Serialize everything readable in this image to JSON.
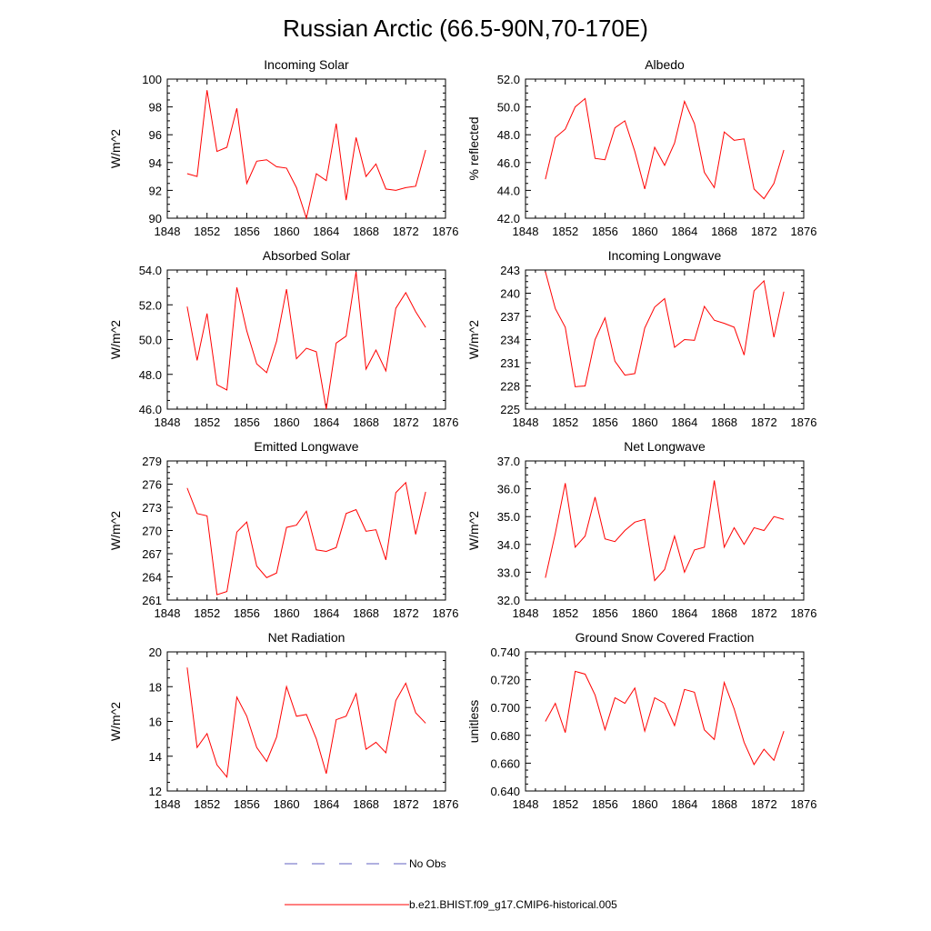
{
  "figure": {
    "title": "Russian Arctic (66.5-90N,70-170E)",
    "legend": [
      {
        "label": "No Obs",
        "color": "#6060c0",
        "style": "dashed"
      },
      {
        "label": "b.e21.BHIST.f09_g17.CMIP6-historical.005",
        "color": "#ff0000",
        "style": "solid"
      }
    ]
  },
  "chart_data": [
    {
      "type": "line",
      "title": "Incoming Solar",
      "ylabel": "W/m^2",
      "xlim": [
        1848,
        1876
      ],
      "xticks": [
        1848,
        1852,
        1856,
        1860,
        1864,
        1868,
        1872,
        1876
      ],
      "ylim": [
        90,
        100
      ],
      "yticks": [
        "90",
        "92",
        "94",
        "96",
        "98",
        "100"
      ],
      "series": [
        {
          "name": "b.e21.BHIST.f09_g17.CMIP6-historical.005",
          "color": "#ff0000",
          "x": [
            1850,
            1851,
            1852,
            1853,
            1854,
            1855,
            1856,
            1857,
            1858,
            1859,
            1860,
            1861,
            1862,
            1863,
            1864,
            1865,
            1866,
            1867,
            1868,
            1869,
            1870,
            1871,
            1872,
            1873,
            1874
          ],
          "y": [
            93.2,
            93.0,
            99.2,
            94.8,
            95.1,
            97.9,
            92.5,
            94.1,
            94.2,
            93.7,
            93.6,
            92.2,
            90.0,
            93.2,
            92.7,
            96.8,
            91.3,
            95.8,
            93.0,
            93.9,
            92.1,
            92.0,
            92.2,
            92.3,
            94.9
          ]
        }
      ]
    },
    {
      "type": "line",
      "title": "Albedo",
      "ylabel": "% reflected",
      "xlim": [
        1848,
        1876
      ],
      "xticks": [
        1848,
        1852,
        1856,
        1860,
        1864,
        1868,
        1872,
        1876
      ],
      "ylim": [
        42,
        52
      ],
      "yticks": [
        "42.0",
        "44.0",
        "46.0",
        "48.0",
        "50.0",
        "52.0"
      ],
      "series": [
        {
          "name": "b.e21.BHIST.f09_g17.CMIP6-historical.005",
          "color": "#ff0000",
          "x": [
            1850,
            1851,
            1852,
            1853,
            1854,
            1855,
            1856,
            1857,
            1858,
            1859,
            1860,
            1861,
            1862,
            1863,
            1864,
            1865,
            1866,
            1867,
            1868,
            1869,
            1870,
            1871,
            1872,
            1873,
            1874
          ],
          "y": [
            44.8,
            47.8,
            48.4,
            50.0,
            50.6,
            46.3,
            46.2,
            48.5,
            49.0,
            46.8,
            44.1,
            47.1,
            45.8,
            47.4,
            50.4,
            48.8,
            45.3,
            44.2,
            48.2,
            47.6,
            47.7,
            44.1,
            43.4,
            44.5,
            46.9
          ]
        }
      ]
    },
    {
      "type": "line",
      "title": "Absorbed Solar",
      "ylabel": "W/m^2",
      "xlim": [
        1848,
        1876
      ],
      "xticks": [
        1848,
        1852,
        1856,
        1860,
        1864,
        1868,
        1872,
        1876
      ],
      "ylim": [
        46,
        54
      ],
      "yticks": [
        "46.0",
        "48.0",
        "50.0",
        "52.0",
        "54.0"
      ],
      "series": [
        {
          "name": "b.e21.BHIST.f09_g17.CMIP6-historical.005",
          "color": "#ff0000",
          "x": [
            1850,
            1851,
            1852,
            1853,
            1854,
            1855,
            1856,
            1857,
            1858,
            1859,
            1860,
            1861,
            1862,
            1863,
            1864,
            1865,
            1866,
            1867,
            1868,
            1869,
            1870,
            1871,
            1872,
            1873,
            1874
          ],
          "y": [
            51.9,
            48.8,
            51.5,
            47.4,
            47.1,
            53.0,
            50.5,
            48.6,
            48.1,
            49.9,
            52.9,
            48.9,
            49.5,
            49.3,
            46.0,
            49.8,
            50.2,
            53.9,
            48.3,
            49.4,
            48.2,
            51.8,
            52.7,
            51.6,
            50.7
          ]
        }
      ]
    },
    {
      "type": "line",
      "title": "Incoming Longwave",
      "ylabel": "W/m^2",
      "xlim": [
        1848,
        1876
      ],
      "xticks": [
        1848,
        1852,
        1856,
        1860,
        1864,
        1868,
        1872,
        1876
      ],
      "ylim": [
        225,
        243
      ],
      "yticks": [
        "225",
        "228",
        "231",
        "234",
        "237",
        "240",
        "243"
      ],
      "series": [
        {
          "name": "b.e21.BHIST.f09_g17.CMIP6-historical.005",
          "color": "#ff0000",
          "x": [
            1850,
            1851,
            1852,
            1853,
            1854,
            1855,
            1856,
            1857,
            1858,
            1859,
            1860,
            1861,
            1862,
            1863,
            1864,
            1865,
            1866,
            1867,
            1868,
            1869,
            1870,
            1871,
            1872,
            1873,
            1874
          ],
          "y": [
            242.8,
            238.0,
            235.6,
            227.9,
            228.0,
            234.0,
            236.8,
            231.2,
            229.4,
            229.6,
            235.5,
            238.2,
            239.3,
            233.0,
            234.0,
            233.9,
            238.3,
            236.5,
            236.1,
            235.6,
            232.0,
            240.3,
            241.6,
            234.3,
            240.2
          ]
        }
      ]
    },
    {
      "type": "line",
      "title": "Emitted Longwave",
      "ylabel": "W/m^2",
      "xlim": [
        1848,
        1876
      ],
      "xticks": [
        1848,
        1852,
        1856,
        1860,
        1864,
        1868,
        1872,
        1876
      ],
      "ylim": [
        261,
        279
      ],
      "yticks": [
        "261",
        "264",
        "267",
        "270",
        "273",
        "276",
        "279"
      ],
      "series": [
        {
          "name": "b.e21.BHIST.f09_g17.CMIP6-historical.005",
          "color": "#ff0000",
          "x": [
            1850,
            1851,
            1852,
            1853,
            1854,
            1855,
            1856,
            1857,
            1858,
            1859,
            1860,
            1861,
            1862,
            1863,
            1864,
            1865,
            1866,
            1867,
            1868,
            1869,
            1870,
            1871,
            1872,
            1873,
            1874
          ],
          "y": [
            275.5,
            272.2,
            271.9,
            261.7,
            262.1,
            269.8,
            271.1,
            265.4,
            263.9,
            264.5,
            270.4,
            270.7,
            272.5,
            267.5,
            267.3,
            267.8,
            272.2,
            272.7,
            269.9,
            270.1,
            266.2,
            274.9,
            276.2,
            269.5,
            275.0
          ]
        }
      ]
    },
    {
      "type": "line",
      "title": "Net Longwave",
      "ylabel": "W/m^2",
      "xlim": [
        1848,
        1876
      ],
      "xticks": [
        1848,
        1852,
        1856,
        1860,
        1864,
        1868,
        1872,
        1876
      ],
      "ylim": [
        32,
        37
      ],
      "yticks": [
        "32.0",
        "33.0",
        "34.0",
        "35.0",
        "36.0",
        "37.0"
      ],
      "series": [
        {
          "name": "b.e21.BHIST.f09_g17.CMIP6-historical.005",
          "color": "#ff0000",
          "x": [
            1850,
            1851,
            1852,
            1853,
            1854,
            1855,
            1856,
            1857,
            1858,
            1859,
            1860,
            1861,
            1862,
            1863,
            1864,
            1865,
            1866,
            1867,
            1868,
            1869,
            1870,
            1871,
            1872,
            1873,
            1874
          ],
          "y": [
            32.8,
            34.4,
            36.2,
            33.9,
            34.3,
            35.7,
            34.2,
            34.1,
            34.5,
            34.8,
            34.9,
            32.7,
            33.1,
            34.3,
            33.0,
            33.8,
            33.9,
            36.3,
            33.9,
            34.6,
            34.0,
            34.6,
            34.5,
            35.0,
            34.9
          ]
        }
      ]
    },
    {
      "type": "line",
      "title": "Net Radiation",
      "ylabel": "W/m^2",
      "xlim": [
        1848,
        1876
      ],
      "xticks": [
        1848,
        1852,
        1856,
        1860,
        1864,
        1868,
        1872,
        1876
      ],
      "ylim": [
        12,
        20
      ],
      "yticks": [
        "12",
        "14",
        "16",
        "18",
        "20"
      ],
      "series": [
        {
          "name": "b.e21.BHIST.f09_g17.CMIP6-historical.005",
          "color": "#ff0000",
          "x": [
            1850,
            1851,
            1852,
            1853,
            1854,
            1855,
            1856,
            1857,
            1858,
            1859,
            1860,
            1861,
            1862,
            1863,
            1864,
            1865,
            1866,
            1867,
            1868,
            1869,
            1870,
            1871,
            1872,
            1873,
            1874
          ],
          "y": [
            19.1,
            14.5,
            15.3,
            13.5,
            12.8,
            17.4,
            16.3,
            14.5,
            13.7,
            15.1,
            18.0,
            16.3,
            16.4,
            15.0,
            13.0,
            16.1,
            16.3,
            17.6,
            14.4,
            14.8,
            14.2,
            17.2,
            18.2,
            16.5,
            15.9
          ]
        }
      ]
    },
    {
      "type": "line",
      "title": "Ground Snow Covered Fraction",
      "ylabel": "unitless",
      "xlim": [
        1848,
        1876
      ],
      "xticks": [
        1848,
        1852,
        1856,
        1860,
        1864,
        1868,
        1872,
        1876
      ],
      "ylim": [
        0.64,
        0.74
      ],
      "yticks": [
        "0.640",
        "0.660",
        "0.680",
        "0.700",
        "0.720",
        "0.740"
      ],
      "series": [
        {
          "name": "b.e21.BHIST.f09_g17.CMIP6-historical.005",
          "color": "#ff0000",
          "x": [
            1850,
            1851,
            1852,
            1853,
            1854,
            1855,
            1856,
            1857,
            1858,
            1859,
            1860,
            1861,
            1862,
            1863,
            1864,
            1865,
            1866,
            1867,
            1868,
            1869,
            1870,
            1871,
            1872,
            1873,
            1874
          ],
          "y": [
            0.69,
            0.703,
            0.682,
            0.726,
            0.724,
            0.709,
            0.684,
            0.707,
            0.703,
            0.714,
            0.683,
            0.707,
            0.703,
            0.687,
            0.713,
            0.711,
            0.684,
            0.677,
            0.718,
            0.699,
            0.675,
            0.659,
            0.67,
            0.662,
            0.683
          ]
        }
      ]
    }
  ]
}
